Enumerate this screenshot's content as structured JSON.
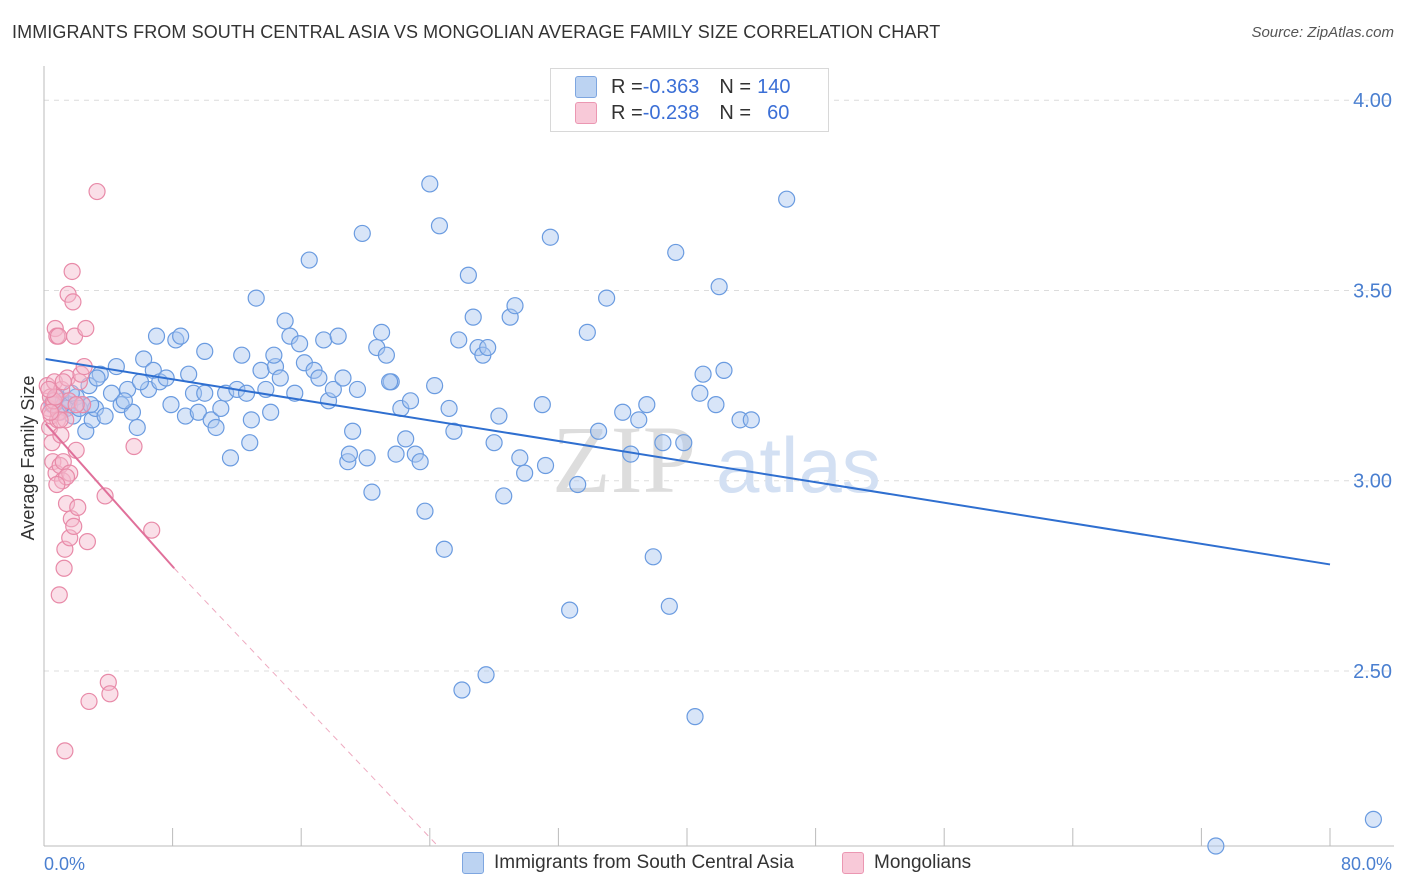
{
  "title": "IMMIGRANTS FROM SOUTH CENTRAL ASIA VS MONGOLIAN AVERAGE FAMILY SIZE CORRELATION CHART",
  "source": "Source: ZipAtlas.com",
  "watermark": {
    "zip": "ZIP",
    "atlas": "atlas"
  },
  "legend": {
    "rows": [
      {
        "r_label": "R = ",
        "r_value": "-0.363",
        "n_label": "N = ",
        "n_value": "140",
        "color": "#a9c6ef"
      },
      {
        "r_label": "R = ",
        "r_value": "-0.238",
        "n_label": "N = ",
        "n_value": "60",
        "color": "#f5b8cc"
      }
    ]
  },
  "bottom_legend": [
    "Immigrants from South Central Asia",
    "Mongolians"
  ],
  "chart_data": {
    "type": "scatter",
    "ylabel": "Average Family Size",
    "x_tick_labels": [
      "0.0%",
      "80.0%"
    ],
    "y_tick_labels": [
      "4.00",
      "3.50",
      "3.00",
      "2.50"
    ],
    "y_ticks": [
      4.0,
      3.5,
      3.0,
      2.5
    ],
    "xlim": [
      0,
      80
    ],
    "ylim": [
      2.04,
      4.09
    ],
    "colors": {
      "blue": "#6a9be0",
      "blue_fill": "#a9c6ef",
      "blue_line": "#2f6fd0",
      "pink": "#e88aa8",
      "pink_fill": "#f5b8cc",
      "pink_line": "#e0709a"
    },
    "series": [
      {
        "name": "Immigrants from South Central Asia",
        "trend": {
          "x0": 0.1,
          "y0": 3.32,
          "x1": 80,
          "y1": 2.78
        },
        "points": [
          [
            0.5,
            3.2
          ],
          [
            0.8,
            3.22
          ],
          [
            1.0,
            3.18
          ],
          [
            1.2,
            3.21
          ],
          [
            1.4,
            3.19
          ],
          [
            1.6,
            3.2
          ],
          [
            1.8,
            3.17
          ],
          [
            2.0,
            3.22
          ],
          [
            2.2,
            3.19
          ],
          [
            2.4,
            3.2
          ],
          [
            2.6,
            3.13
          ],
          [
            2.8,
            3.25
          ],
          [
            3.0,
            3.16
          ],
          [
            3.2,
            3.19
          ],
          [
            3.5,
            3.28
          ],
          [
            3.8,
            3.17
          ],
          [
            4.2,
            3.23
          ],
          [
            4.5,
            3.3
          ],
          [
            4.8,
            3.2
          ],
          [
            5.2,
            3.24
          ],
          [
            5.5,
            3.18
          ],
          [
            5.8,
            3.14
          ],
          [
            6.2,
            3.32
          ],
          [
            6.5,
            3.24
          ],
          [
            6.8,
            3.29
          ],
          [
            7.0,
            3.38
          ],
          [
            7.2,
            3.26
          ],
          [
            7.6,
            3.27
          ],
          [
            7.9,
            3.2
          ],
          [
            8.2,
            3.37
          ],
          [
            8.5,
            3.38
          ],
          [
            8.8,
            3.17
          ],
          [
            9.0,
            3.28
          ],
          [
            9.3,
            3.23
          ],
          [
            9.6,
            3.18
          ],
          [
            10.0,
            3.34
          ],
          [
            10.4,
            3.16
          ],
          [
            10.7,
            3.14
          ],
          [
            11.0,
            3.19
          ],
          [
            11.3,
            3.23
          ],
          [
            11.6,
            3.06
          ],
          [
            12.0,
            3.24
          ],
          [
            12.3,
            3.33
          ],
          [
            12.6,
            3.23
          ],
          [
            12.9,
            3.16
          ],
          [
            13.2,
            3.48
          ],
          [
            13.5,
            3.29
          ],
          [
            13.8,
            3.24
          ],
          [
            14.1,
            3.18
          ],
          [
            14.4,
            3.3
          ],
          [
            14.7,
            3.27
          ],
          [
            15.0,
            3.42
          ],
          [
            15.3,
            3.38
          ],
          [
            15.6,
            3.23
          ],
          [
            15.9,
            3.36
          ],
          [
            16.2,
            3.31
          ],
          [
            16.5,
            3.58
          ],
          [
            16.8,
            3.29
          ],
          [
            17.1,
            3.27
          ],
          [
            17.4,
            3.37
          ],
          [
            17.7,
            3.21
          ],
          [
            18.0,
            3.24
          ],
          [
            18.3,
            3.38
          ],
          [
            18.6,
            3.27
          ],
          [
            18.9,
            3.05
          ],
          [
            19.2,
            3.13
          ],
          [
            19.5,
            3.24
          ],
          [
            19.8,
            3.65
          ],
          [
            20.1,
            3.06
          ],
          [
            20.4,
            2.97
          ],
          [
            20.7,
            3.35
          ],
          [
            21.0,
            3.39
          ],
          [
            21.3,
            3.33
          ],
          [
            21.6,
            3.26
          ],
          [
            21.9,
            3.07
          ],
          [
            22.2,
            3.19
          ],
          [
            22.5,
            3.11
          ],
          [
            22.8,
            3.21
          ],
          [
            23.1,
            3.07
          ],
          [
            23.4,
            3.05
          ],
          [
            23.7,
            2.92
          ],
          [
            24.0,
            3.78
          ],
          [
            24.3,
            3.25
          ],
          [
            24.6,
            3.67
          ],
          [
            24.9,
            2.82
          ],
          [
            25.2,
            3.19
          ],
          [
            25.8,
            3.37
          ],
          [
            26.4,
            3.54
          ],
          [
            26.7,
            3.43
          ],
          [
            27.0,
            3.35
          ],
          [
            27.3,
            3.33
          ],
          [
            27.6,
            3.35
          ],
          [
            28.0,
            3.1
          ],
          [
            28.3,
            3.17
          ],
          [
            28.6,
            2.96
          ],
          [
            29.0,
            3.43
          ],
          [
            29.3,
            3.46
          ],
          [
            29.6,
            3.06
          ],
          [
            29.9,
            3.02
          ],
          [
            31.2,
            3.04
          ],
          [
            31.5,
            3.64
          ],
          [
            32.7,
            2.66
          ],
          [
            33.2,
            2.99
          ],
          [
            33.8,
            3.39
          ],
          [
            34.5,
            3.13
          ],
          [
            35.0,
            3.48
          ],
          [
            36.0,
            3.18
          ],
          [
            37.0,
            3.16
          ],
          [
            37.5,
            3.2
          ],
          [
            37.9,
            2.8
          ],
          [
            38.5,
            3.1
          ],
          [
            38.9,
            2.67
          ],
          [
            39.3,
            3.6
          ],
          [
            39.8,
            3.1
          ],
          [
            40.5,
            2.38
          ],
          [
            40.8,
            3.23
          ],
          [
            41.0,
            3.28
          ],
          [
            41.8,
            3.2
          ],
          [
            42.0,
            3.51
          ],
          [
            42.3,
            3.29
          ],
          [
            43.3,
            3.16
          ],
          [
            44.0,
            3.16
          ],
          [
            46.2,
            3.74
          ],
          [
            25.5,
            3.13
          ],
          [
            26.0,
            2.45
          ],
          [
            12.8,
            3.1
          ],
          [
            5.0,
            3.21
          ],
          [
            6.0,
            3.26
          ],
          [
            10.0,
            3.23
          ],
          [
            14.3,
            3.33
          ],
          [
            19.0,
            3.07
          ],
          [
            21.5,
            3.26
          ],
          [
            27.5,
            2.49
          ],
          [
            31.0,
            3.2
          ],
          [
            36.5,
            3.07
          ],
          [
            1.7,
            3.23
          ],
          [
            2.9,
            3.2
          ],
          [
            3.3,
            3.27
          ],
          [
            72.9,
            2.04
          ],
          [
            82.7,
            2.11
          ]
        ]
      },
      {
        "name": "Mongolians",
        "trend": {
          "x0": 0.1,
          "y0": 3.15,
          "x1": 8.1,
          "y1": 2.77
        },
        "trend_dashed": {
          "x0": 8.1,
          "y0": 2.77,
          "x1": 24.5,
          "y1": 2.04
        },
        "points": [
          [
            0.2,
            3.25
          ],
          [
            0.3,
            3.19
          ],
          [
            0.35,
            3.14
          ],
          [
            0.4,
            3.22
          ],
          [
            0.45,
            3.17
          ],
          [
            0.5,
            3.1
          ],
          [
            0.55,
            3.05
          ],
          [
            0.6,
            3.2
          ],
          [
            0.65,
            3.26
          ],
          [
            0.7,
            3.4
          ],
          [
            0.75,
            3.02
          ],
          [
            0.8,
            3.38
          ],
          [
            0.85,
            3.16
          ],
          [
            0.9,
            3.18
          ],
          [
            0.95,
            2.7
          ],
          [
            1.0,
            3.04
          ],
          [
            1.05,
            3.12
          ],
          [
            1.1,
            3.24
          ],
          [
            1.15,
            3.0
          ],
          [
            1.2,
            3.05
          ],
          [
            1.25,
            2.77
          ],
          [
            1.3,
            2.82
          ],
          [
            1.35,
            3.16
          ],
          [
            1.4,
            2.94
          ],
          [
            1.45,
            3.27
          ],
          [
            1.5,
            3.49
          ],
          [
            1.55,
            3.21
          ],
          [
            1.6,
            2.85
          ],
          [
            1.7,
            2.9
          ],
          [
            1.75,
            3.55
          ],
          [
            1.8,
            3.47
          ],
          [
            1.85,
            2.88
          ],
          [
            1.9,
            3.38
          ],
          [
            2.0,
            3.08
          ],
          [
            2.1,
            2.93
          ],
          [
            2.2,
            3.26
          ],
          [
            2.3,
            3.28
          ],
          [
            2.4,
            3.2
          ],
          [
            2.5,
            3.3
          ],
          [
            2.6,
            3.4
          ],
          [
            2.7,
            2.84
          ],
          [
            2.8,
            2.42
          ],
          [
            3.3,
            3.76
          ],
          [
            3.8,
            2.96
          ],
          [
            4.0,
            2.47
          ],
          [
            4.1,
            2.44
          ],
          [
            5.6,
            3.09
          ],
          [
            6.7,
            2.87
          ],
          [
            1.3,
            2.29
          ],
          [
            0.9,
            3.38
          ],
          [
            0.6,
            3.21
          ],
          [
            1.0,
            3.16
          ],
          [
            1.2,
            3.26
          ],
          [
            0.4,
            3.18
          ],
          [
            0.7,
            3.22
          ],
          [
            1.6,
            3.02
          ],
          [
            1.4,
            3.01
          ],
          [
            2.0,
            3.2
          ],
          [
            0.3,
            3.24
          ],
          [
            0.8,
            2.99
          ]
        ]
      }
    ]
  }
}
